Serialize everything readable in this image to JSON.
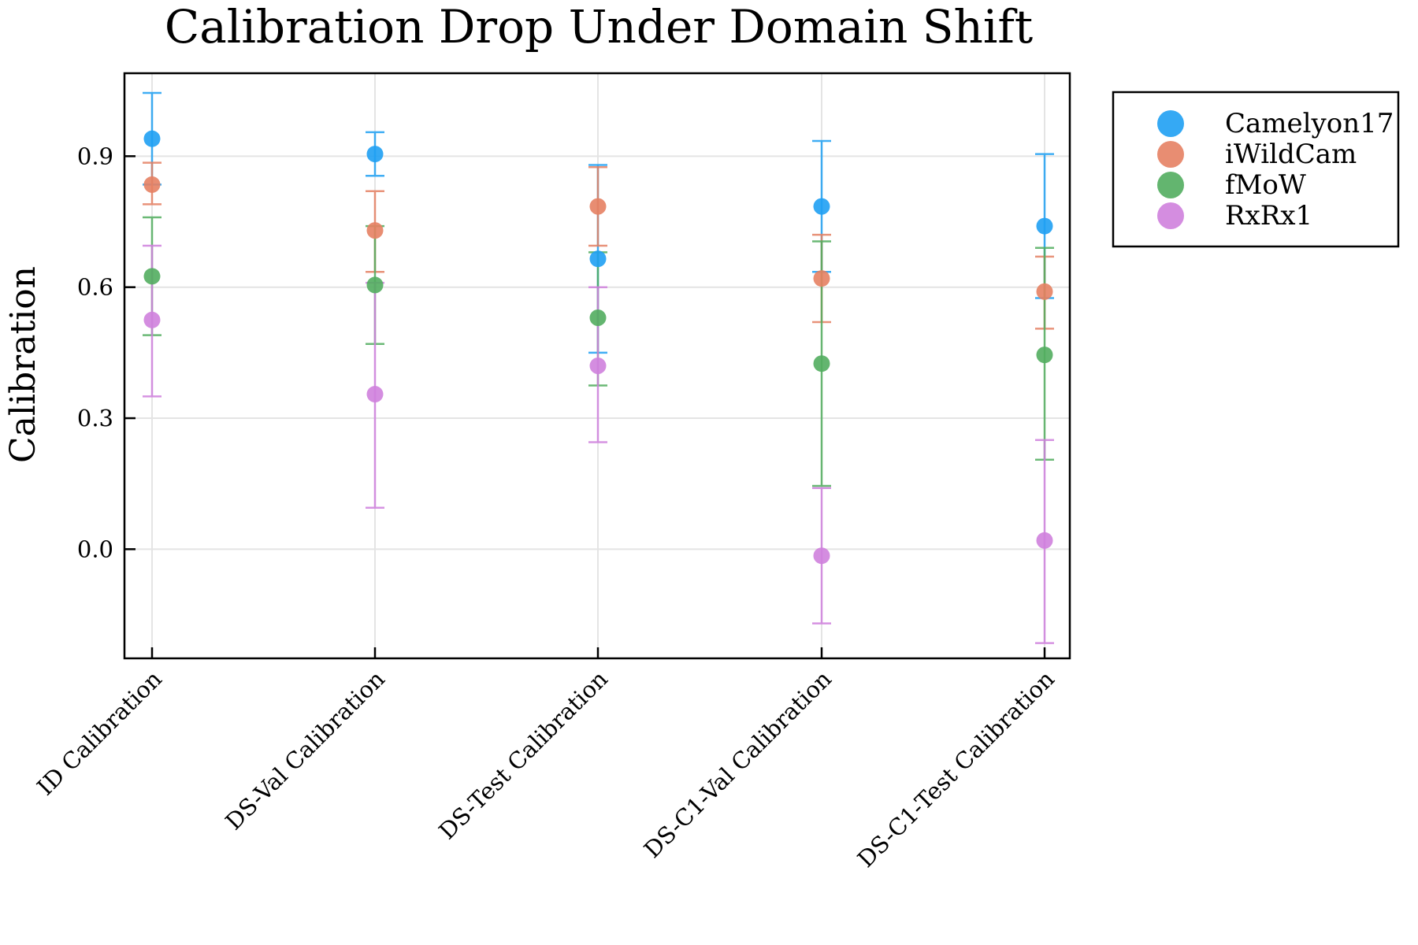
{
  "chart_data": {
    "type": "scatter",
    "title": "Calibration Drop Under Domain Shift",
    "xlabel": "",
    "ylabel": "Calibration",
    "ylim": [
      -0.25,
      1.09
    ],
    "yticks": [
      0.0,
      0.3,
      0.6,
      0.9
    ],
    "ytick_labels": [
      "0.0",
      "0.3",
      "0.6",
      "0.9"
    ],
    "grid": true,
    "legend_position": "outside-top-right",
    "categories": [
      "ID Calibration",
      "DS-Val Calibration",
      "DS-Test Calibration",
      "DS-C1-Val Calibration",
      "DS-C1-Test Calibration"
    ],
    "series": [
      {
        "name": "Camelyon17",
        "color": "#1fa0f3",
        "values": [
          0.94,
          0.905,
          0.665,
          0.785,
          0.74
        ],
        "lower": [
          0.835,
          0.855,
          0.45,
          0.635,
          0.575
        ],
        "upper": [
          1.045,
          0.955,
          0.88,
          0.935,
          0.905
        ]
      },
      {
        "name": "iWildCam",
        "color": "#e58163",
        "values": [
          0.835,
          0.73,
          0.785,
          0.62,
          0.59
        ],
        "lower": [
          0.79,
          0.635,
          0.695,
          0.52,
          0.505
        ],
        "upper": [
          0.885,
          0.82,
          0.875,
          0.72,
          0.67
        ]
      },
      {
        "name": "fMoW",
        "color": "#52ad5f",
        "values": [
          0.625,
          0.605,
          0.53,
          0.425,
          0.445
        ],
        "lower": [
          0.49,
          0.47,
          0.375,
          0.145,
          0.205
        ],
        "upper": [
          0.76,
          0.74,
          0.68,
          0.705,
          0.69
        ]
      },
      {
        "name": "RxRx1",
        "color": "#cf81dd",
        "values": [
          0.525,
          0.355,
          0.42,
          -0.015,
          0.02
        ],
        "lower": [
          0.35,
          0.095,
          0.245,
          -0.17,
          -0.215
        ],
        "upper": [
          0.695,
          0.61,
          0.6,
          0.14,
          0.25
        ]
      }
    ]
  }
}
